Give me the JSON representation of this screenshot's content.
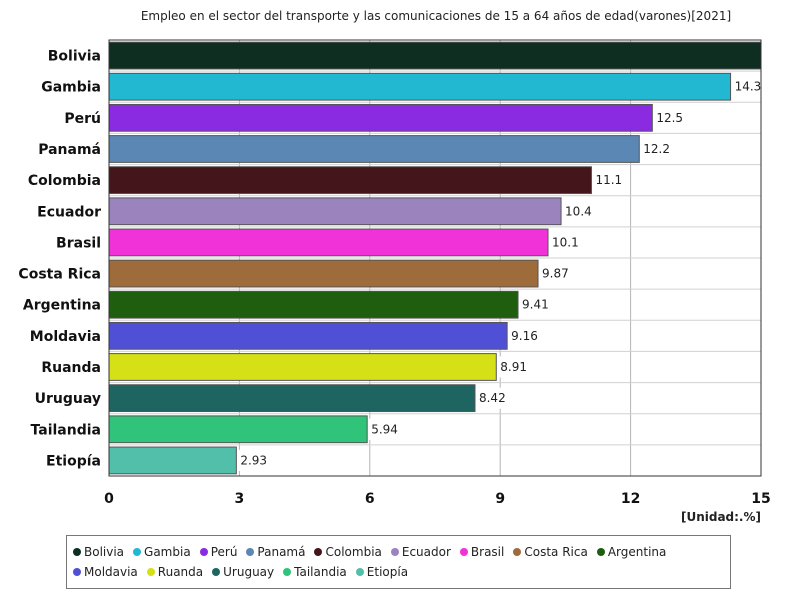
{
  "chart_data": {
    "type": "bar",
    "orientation": "horizontal",
    "title": "Empleo en el sector del transporte y las comunicaciones de 15 a 64 años de edad(varones)[2021]",
    "unit_label": "[Unidad:.%]",
    "categories": [
      "Bolivia",
      "Gambia",
      "Perú",
      "Panamá",
      "Colombia",
      "Ecuador",
      "Brasil",
      "Costa Rica",
      "Argentina",
      "Moldavia",
      "Ruanda",
      "Uruguay",
      "Tailandia",
      "Etiopía"
    ],
    "values": [
      15.0,
      14.3,
      12.5,
      12.2,
      11.1,
      10.4,
      10.1,
      9.87,
      9.41,
      9.16,
      8.91,
      8.42,
      5.94,
      2.93
    ],
    "value_labels": [
      "",
      "14.3",
      "12.5",
      "12.2",
      "11.1",
      "10.4",
      "10.1",
      "9.87",
      "9.41",
      "9.16",
      "8.91",
      "8.42",
      "5.94",
      "2.93"
    ],
    "colors": [
      "#0f2e22",
      "#22b8d2",
      "#8a2be2",
      "#5b87b4",
      "#44151b",
      "#9b84be",
      "#f032d8",
      "#9e6b3a",
      "#1e5e0e",
      "#5050d6",
      "#d6e016",
      "#1e6460",
      "#30c47a",
      "#52bfaa"
    ],
    "xlim": [
      0,
      15
    ],
    "xticks": [
      0,
      3,
      6,
      9,
      12,
      15
    ],
    "grid": true,
    "legend_position": "bottom"
  }
}
